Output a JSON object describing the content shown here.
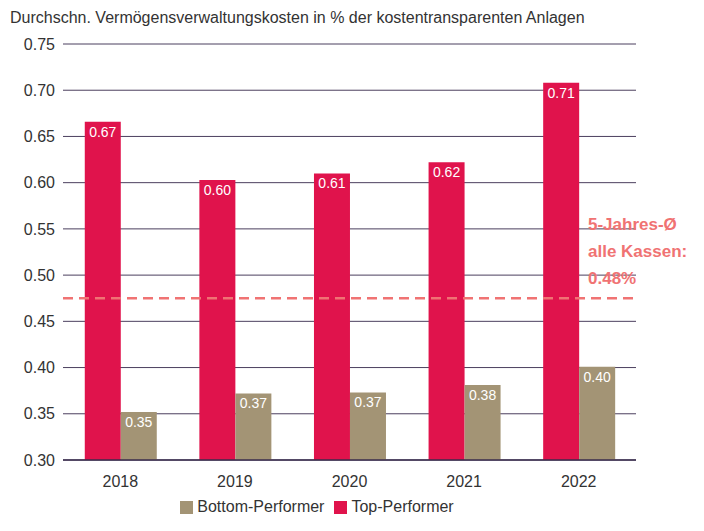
{
  "chart_data": {
    "type": "bar",
    "title": "Durchschn. Vermögensverwaltungskosten in % der kostentransparenten Anlagen",
    "categories": [
      "2018",
      "2019",
      "2020",
      "2021",
      "2022"
    ],
    "series": [
      {
        "name": "Top-Performer",
        "color": "#e0134c",
        "values": [
          0.666,
          0.603,
          0.61,
          0.622,
          0.708
        ],
        "value_labels": [
          "0.67",
          "0.60",
          "0.61",
          "0.62",
          "0.71"
        ]
      },
      {
        "name": "Bottom-Performer",
        "color": "#a39475",
        "values": [
          0.352,
          0.372,
          0.373,
          0.381,
          0.401
        ],
        "value_labels": [
          "0.35",
          "0.37",
          "0.37",
          "0.38",
          "0.40"
        ]
      }
    ],
    "ylim": [
      0.3,
      0.75
    ],
    "yticks": [
      {
        "value": 0.3,
        "label": "0.30"
      },
      {
        "value": 0.35,
        "label": "0.35"
      },
      {
        "value": 0.4,
        "label": "0.40"
      },
      {
        "value": 0.45,
        "label": "0.45"
      },
      {
        "value": 0.5,
        "label": "0.50"
      },
      {
        "value": 0.55,
        "label": "0.55"
      },
      {
        "value": 0.6,
        "label": "0.60"
      },
      {
        "value": 0.65,
        "label": "0.65"
      },
      {
        "value": 0.7,
        "label": "0.70"
      },
      {
        "value": 0.75,
        "label": "0.75"
      }
    ],
    "grid": true,
    "data_labels": true,
    "legend": "bottom",
    "annotation": {
      "value": 0.475,
      "text": [
        "5-Jahres-Ø",
        "alle Kassen:",
        "0.48%"
      ],
      "color": "#f07373",
      "line_style": "dashed"
    }
  }
}
